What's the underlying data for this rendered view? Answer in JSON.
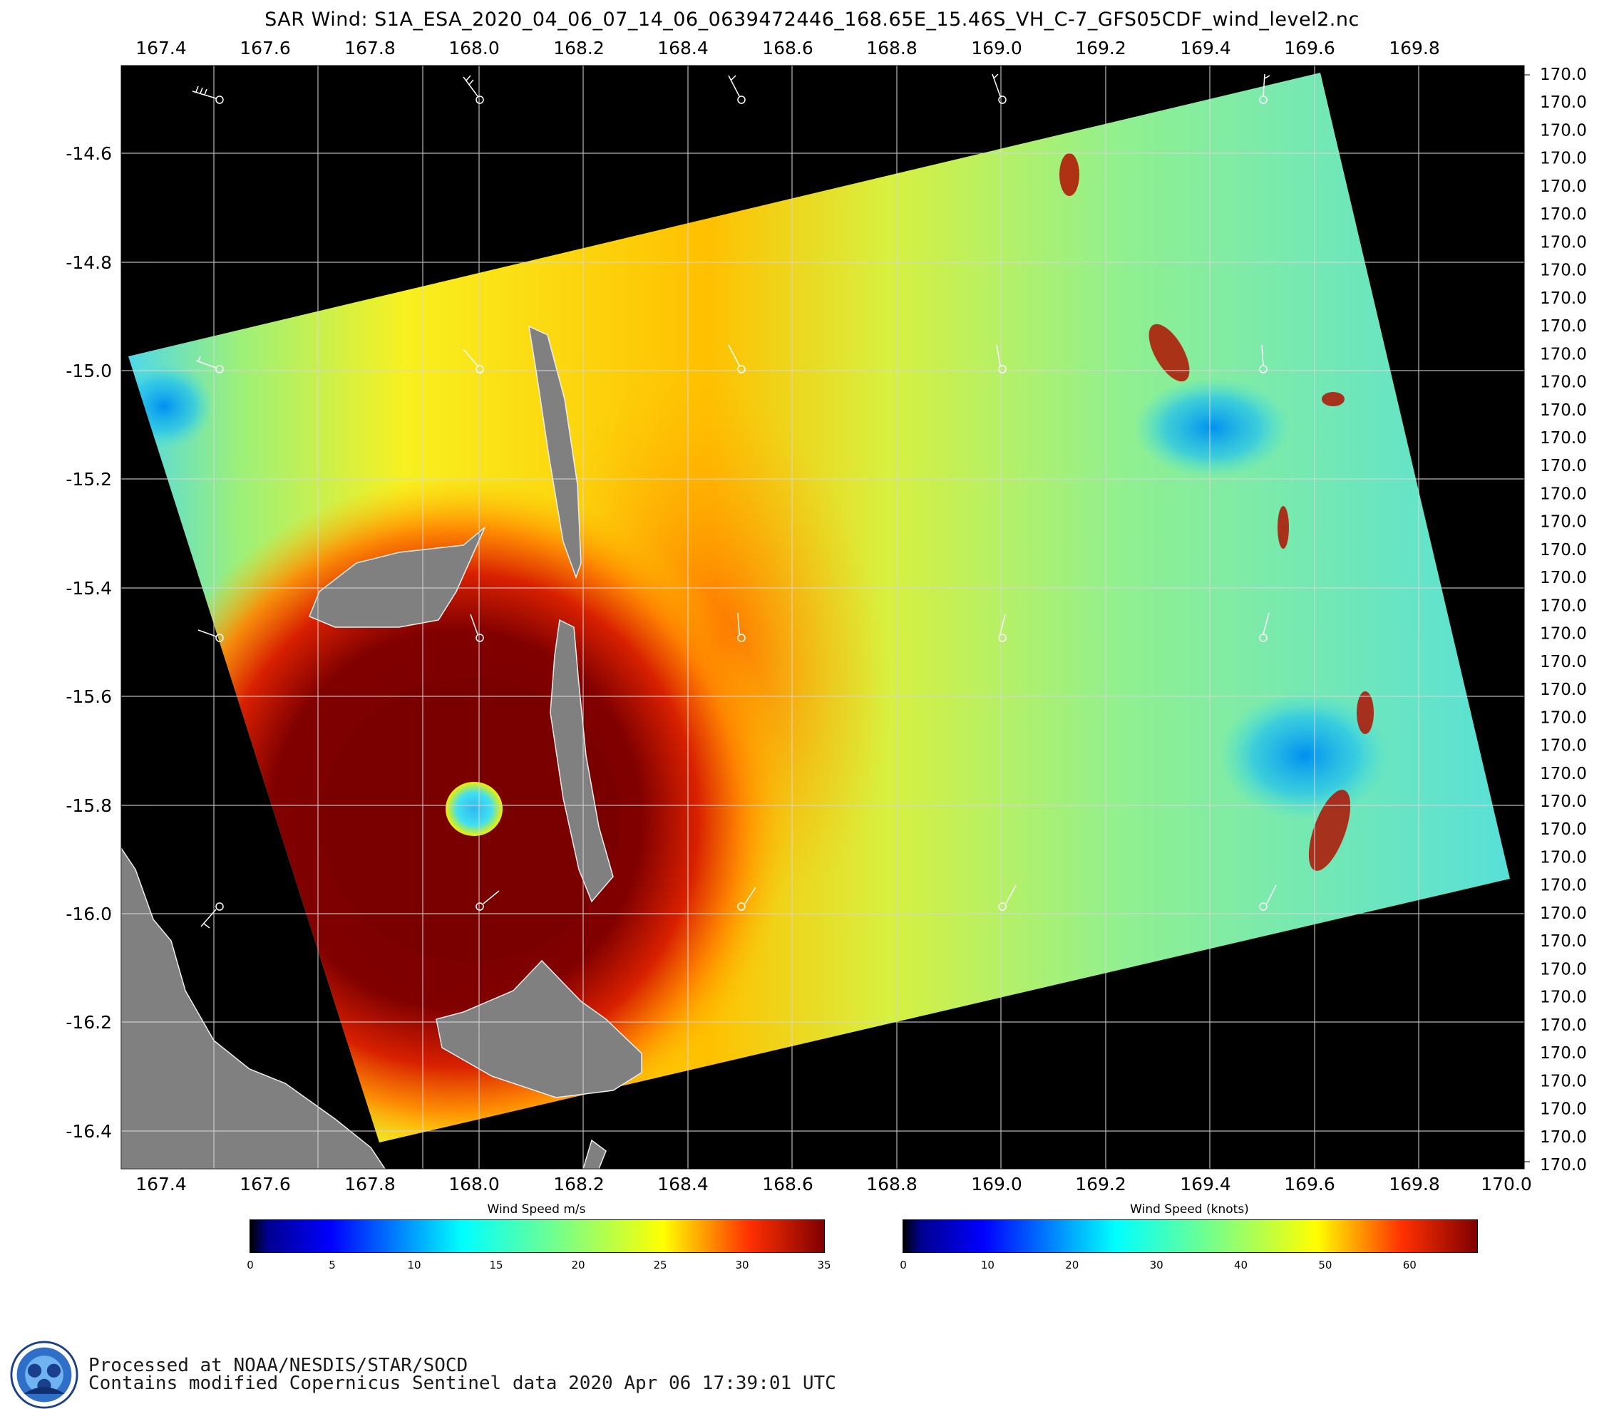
{
  "title": "SAR Wind: S1A_ESA_2020_04_06_07_14_06_0639472446_168.65E_15.46S_VH_C-7_GFS05CDF_wind_level2.nc",
  "axes": {
    "top_lon_labels": [
      "167.4",
      "167.6",
      "167.8",
      "168.0",
      "168.2",
      "168.4",
      "168.6",
      "168.8",
      "169.0",
      "169.2",
      "169.4",
      "169.6",
      "169.8"
    ],
    "bottom_lon_labels": [
      "167.4",
      "167.6",
      "167.8",
      "168.0",
      "168.2",
      "168.4",
      "168.6",
      "168.8",
      "169.0",
      "169.2",
      "169.4",
      "169.6",
      "169.8",
      "170.0"
    ],
    "left_lat_labels": [
      "-14.6",
      "-14.8",
      "-15.0",
      "-15.2",
      "-15.4",
      "-15.6",
      "-15.8",
      "-16.0",
      "-16.2",
      "-16.4"
    ],
    "right_labels": [
      "170.0",
      "170.0",
      "170.0",
      "170.0",
      "170.0",
      "170.0",
      "170.0",
      "170.0",
      "170.0",
      "170.0",
      "170.0",
      "170.0",
      "170.0",
      "170.0",
      "170.0",
      "170.0",
      "170.0",
      "170.0",
      "170.0",
      "170.0",
      "170.0",
      "170.0",
      "170.0",
      "170.0",
      "170.0",
      "170.0",
      "170.0",
      "170.0",
      "170.0",
      "170.0",
      "170.0",
      "170.0",
      "170.0",
      "170.0",
      "170.0",
      "170.0",
      "170.0",
      "170.0",
      "170.0",
      "170.0"
    ]
  },
  "colorbar_ms": {
    "title": "Wind Speed m/s",
    "ticks": [
      "0",
      "5",
      "10",
      "15",
      "20",
      "25",
      "30",
      "35"
    ],
    "range": [
      0,
      35
    ]
  },
  "colorbar_knots": {
    "title": "Wind Speed (knots)",
    "ticks": [
      "0",
      "10",
      "20",
      "30",
      "40",
      "50",
      "60"
    ],
    "range": [
      0,
      68
    ]
  },
  "colors": {
    "background": "#000000",
    "land": "#808080",
    "grid": "#d8d8d8",
    "eye": "#3ad0f0",
    "eyewall": "#7a0000"
  },
  "footer": {
    "line1": "Processed at NOAA/NESDIS/STAR/SOCD",
    "line2": "Contains modified Copernicus Sentinel data 2020 Apr 06 17:39:01 UTC"
  },
  "logo": {
    "icon": "noaa-nesdis-star-seal-icon",
    "text": "NOAA NESDIS STAR SOCD CORP NMCO"
  }
}
